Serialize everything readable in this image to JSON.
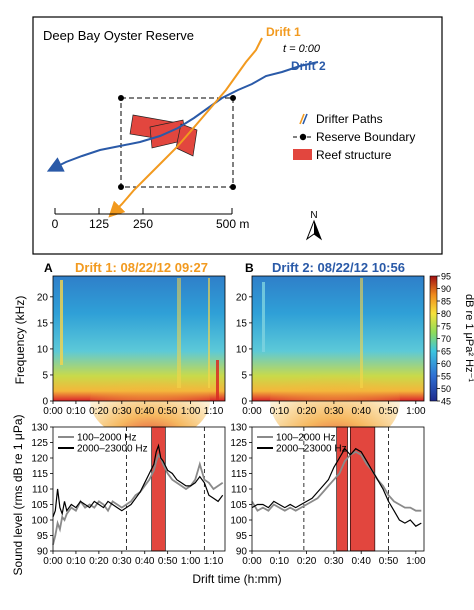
{
  "map": {
    "title": "Deep Bay Oyster Reserve",
    "drift1_label": "Drift 1",
    "drift2_label": "Drift 2",
    "t0_label": "t = 0:00",
    "legend": {
      "paths": "Drifter Paths",
      "boundary": "Reserve Boundary",
      "reef": "Reef structure"
    },
    "scale": {
      "ticks": [
        "0",
        "125",
        "250",
        "500 m"
      ]
    },
    "north": "N",
    "colors": {
      "drift1": "#f29a1f",
      "drift2": "#2a5aa8",
      "reef": "#e2463e"
    }
  },
  "spectrograms": {
    "colorbar_label": "dB re 1 μPa² Hz⁻¹",
    "colorbar_ticks": [
      "95",
      "90",
      "85",
      "80",
      "75",
      "70",
      "65",
      "60",
      "55",
      "50",
      "45"
    ],
    "ylabel": "Frequency (kHz)",
    "yticks": [
      "0",
      "5",
      "10",
      "15",
      "20"
    ]
  },
  "chart_data": [
    {
      "type": "heatmap",
      "panel": "A",
      "title": "Drift 1: 08/22/12 09:27",
      "title_color": "#f29a1f",
      "ylabel": "Frequency (kHz)",
      "ylim": [
        0,
        24
      ],
      "xlim_min": [
        0,
        75
      ],
      "xticks": [
        "0:00",
        "0:10",
        "0:20",
        "0:30",
        "0:40",
        "0:50",
        "1:00",
        "1:10"
      ],
      "zlim_db": [
        45,
        95
      ]
    },
    {
      "type": "heatmap",
      "panel": "B",
      "title": "Drift 2: 08/22/12 10:56",
      "title_color": "#2a5aa8",
      "ylabel": "Frequency (kHz)",
      "ylim": [
        0,
        24
      ],
      "xlim_min": [
        0,
        63
      ],
      "xticks": [
        "0:00",
        "0:10",
        "0:20",
        "0:30",
        "0:40",
        "0:50",
        "1:00"
      ],
      "zlim_db": [
        45,
        95
      ]
    },
    {
      "type": "line",
      "panel": "A-level",
      "ylabel": "Sound level (rms dB re 1 μPa)",
      "xlabel": "Drift time (h:mm)",
      "ylim": [
        90,
        130
      ],
      "yticks": [
        "90",
        "95",
        "100",
        "105",
        "110",
        "115",
        "120",
        "125",
        "130"
      ],
      "xticks": [
        "0:00",
        "0:10",
        "0:20",
        "0:30",
        "0:40",
        "0:50",
        "1:00",
        "1:10"
      ],
      "xlim_min": [
        0,
        75
      ],
      "dashed_boundaries_min": [
        32,
        66
      ],
      "reef_spans_min": [
        [
          43,
          49
        ]
      ],
      "series": [
        {
          "name": "100–2000 Hz",
          "color": "#8a8a8a",
          "x": [
            0,
            1,
            2,
            3,
            4,
            5,
            6,
            8,
            10,
            12,
            14,
            16,
            18,
            20,
            22,
            24,
            26,
            28,
            30,
            32,
            34,
            36,
            38,
            40,
            42,
            44,
            45,
            46,
            47,
            48,
            50,
            52,
            54,
            56,
            58,
            60,
            62,
            64,
            66,
            68,
            70,
            72,
            74
          ],
          "values": [
            92,
            95,
            99,
            97,
            101,
            100,
            102,
            104,
            103,
            106,
            104,
            105,
            104,
            106,
            105,
            103,
            106,
            105,
            104,
            105,
            106,
            108,
            109,
            111,
            113,
            116,
            119,
            121,
            120,
            118,
            115,
            113,
            112,
            111,
            110,
            111,
            113,
            118,
            113,
            112,
            110,
            111,
            112
          ]
        },
        {
          "name": "2000–23000 Hz",
          "color": "#000000",
          "x": [
            0,
            1,
            2,
            3,
            4,
            5,
            6,
            8,
            10,
            12,
            14,
            16,
            18,
            20,
            22,
            24,
            26,
            28,
            30,
            32,
            34,
            36,
            38,
            40,
            42,
            44,
            45,
            46,
            47,
            48,
            50,
            52,
            54,
            56,
            58,
            60,
            62,
            64,
            66,
            68,
            70,
            72,
            74
          ],
          "values": [
            101,
            103,
            110,
            104,
            102,
            106,
            103,
            105,
            104,
            106,
            105,
            104,
            106,
            105,
            104,
            106,
            105,
            104,
            103,
            104,
            105,
            107,
            109,
            112,
            115,
            118,
            122,
            124,
            120,
            119,
            116,
            115,
            113,
            112,
            111,
            111,
            112,
            114,
            112,
            108,
            107,
            106,
            108
          ]
        }
      ]
    },
    {
      "type": "line",
      "panel": "B-level",
      "ylabel": "Sound level (rms dB re 1 μPa)",
      "xlabel": "Drift time (h:mm)",
      "ylim": [
        90,
        130
      ],
      "yticks": [
        "90",
        "95",
        "100",
        "105",
        "110",
        "115",
        "120",
        "125",
        "130"
      ],
      "xticks": [
        "0:00",
        "0:10",
        "0:20",
        "0:30",
        "0:40",
        "0:50",
        "1:00"
      ],
      "xlim_min": [
        0,
        63
      ],
      "dashed_boundaries_min": [
        19,
        50
      ],
      "reef_spans_min": [
        [
          31,
          35
        ],
        [
          36,
          45
        ]
      ],
      "series": [
        {
          "name": "100–2000 Hz",
          "color": "#8a8a8a",
          "x": [
            0,
            2,
            4,
            6,
            8,
            10,
            12,
            14,
            16,
            18,
            20,
            22,
            24,
            26,
            28,
            30,
            32,
            34,
            36,
            38,
            40,
            42,
            44,
            46,
            48,
            50,
            52,
            54,
            56,
            58,
            60,
            62
          ],
          "values": [
            106,
            103,
            104,
            103,
            105,
            104,
            103,
            104,
            103,
            104,
            105,
            106,
            107,
            109,
            111,
            113,
            115,
            119,
            121,
            122,
            121,
            118,
            116,
            113,
            111,
            108,
            106,
            105,
            104,
            104,
            103,
            103
          ]
        },
        {
          "name": "2000–23000 Hz",
          "color": "#000000",
          "x": [
            0,
            2,
            4,
            6,
            8,
            10,
            12,
            14,
            16,
            18,
            20,
            22,
            24,
            26,
            28,
            30,
            32,
            34,
            36,
            38,
            40,
            42,
            44,
            46,
            48,
            50,
            52,
            54,
            56,
            58,
            60,
            62
          ],
          "values": [
            104,
            105,
            105,
            104,
            106,
            105,
            104,
            105,
            104,
            105,
            106,
            107,
            109,
            111,
            113,
            117,
            120,
            123,
            121,
            123,
            122,
            119,
            116,
            113,
            110,
            106,
            103,
            100,
            99,
            100,
            98,
            99
          ]
        }
      ]
    }
  ],
  "bottom": {
    "xlabel": "Drift time (h:mm)"
  }
}
